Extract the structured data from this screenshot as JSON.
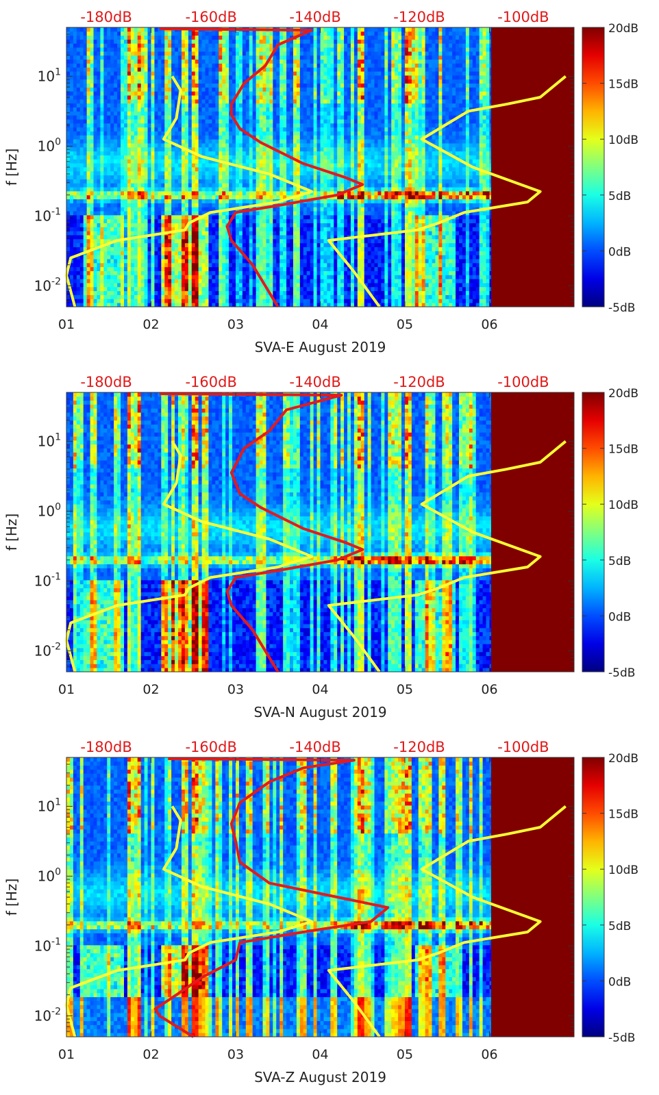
{
  "chart_data": [
    {
      "type": "heatmap",
      "title": "SVA-E August 2019",
      "xlabel": "SVA-E August 2019",
      "ylabel": "f [Hz]",
      "x_ticks": [
        "01",
        "02",
        "03",
        "04",
        "05",
        "06"
      ],
      "y_ticks": [
        "10^{-2}",
        "10^{-1}",
        "10^{0}",
        "10^{1}"
      ],
      "top_ticks": [
        "-180dB",
        "-160dB",
        "-140dB",
        "-120dB",
        "-100dB"
      ],
      "colorbar_ticks": [
        "20dB",
        "15dB",
        "10dB",
        "5dB",
        "0dB",
        "-5dB"
      ],
      "xlim": [
        1,
        7
      ],
      "ylim_log10": [
        -2.3,
        1.7
      ],
      "clim": [
        -5,
        20
      ],
      "series": [
        {
          "name": "red noise curve",
          "color": "#e41a1c",
          "points": [
            [
              2.1,
              1.68
            ],
            [
              3.9,
              1.66
            ],
            [
              3.5,
              1.45
            ],
            [
              3.35,
              1.15
            ],
            [
              3.1,
              0.9
            ],
            [
              2.95,
              0.6
            ],
            [
              2.95,
              0.45
            ],
            [
              3.05,
              0.25
            ],
            [
              3.3,
              0.05
            ],
            [
              3.8,
              -0.25
            ],
            [
              4.3,
              -0.45
            ],
            [
              4.5,
              -0.55
            ],
            [
              4.2,
              -0.7
            ],
            [
              3.5,
              -0.85
            ],
            [
              3.0,
              -0.95
            ],
            [
              2.9,
              -1.15
            ],
            [
              2.95,
              -1.35
            ],
            [
              3.2,
              -1.7
            ],
            [
              3.5,
              -2.3
            ]
          ]
        },
        {
          "name": "yellow model curve left",
          "color": "#ffff33",
          "points": [
            [
              2.25,
              1.0
            ],
            [
              2.35,
              0.8
            ],
            [
              2.3,
              0.4
            ],
            [
              2.15,
              0.1
            ],
            [
              2.6,
              -0.15
            ],
            [
              3.4,
              -0.4
            ],
            [
              3.9,
              -0.65
            ],
            [
              3.5,
              -0.8
            ],
            [
              2.7,
              -0.95
            ],
            [
              2.45,
              -1.1
            ],
            [
              2.4,
              -1.2
            ],
            [
              1.6,
              -1.35
            ],
            [
              1.05,
              -1.6
            ],
            [
              1.0,
              -1.85
            ],
            [
              1.1,
              -2.3
            ]
          ]
        },
        {
          "name": "yellow model curve right",
          "color": "#ffff33",
          "points": [
            [
              6.9,
              1.0
            ],
            [
              6.6,
              0.7
            ],
            [
              6.2,
              0.6
            ],
            [
              5.75,
              0.5
            ],
            [
              5.2,
              0.1
            ],
            [
              5.8,
              -0.3
            ],
            [
              6.6,
              -0.65
            ],
            [
              6.45,
              -0.8
            ],
            [
              5.7,
              -0.95
            ],
            [
              5.4,
              -1.1
            ],
            [
              5.15,
              -1.2
            ],
            [
              4.1,
              -1.35
            ],
            [
              4.4,
              -1.8
            ],
            [
              4.7,
              -2.3
            ]
          ]
        }
      ]
    },
    {
      "type": "heatmap",
      "title": "SVA-N August 2019",
      "xlabel": "SVA-N August 2019",
      "ylabel": "f [Hz]",
      "x_ticks": [
        "01",
        "02",
        "03",
        "04",
        "05",
        "06"
      ],
      "y_ticks": [
        "10^{-2}",
        "10^{-1}",
        "10^{0}",
        "10^{1}"
      ],
      "top_ticks": [
        "-180dB",
        "-160dB",
        "-140dB",
        "-120dB",
        "-100dB"
      ],
      "colorbar_ticks": [
        "20dB",
        "15dB",
        "10dB",
        "5dB",
        "0dB",
        "-5dB"
      ],
      "xlim": [
        1,
        7
      ],
      "ylim_log10": [
        -2.3,
        1.7
      ],
      "clim": [
        -5,
        20
      ],
      "series": [
        {
          "name": "red noise curve",
          "color": "#e41a1c",
          "points": [
            [
              2.1,
              1.68
            ],
            [
              4.25,
              1.66
            ],
            [
              3.6,
              1.45
            ],
            [
              3.4,
              1.15
            ],
            [
              3.1,
              0.9
            ],
            [
              2.95,
              0.55
            ],
            [
              3.05,
              0.25
            ],
            [
              3.3,
              0.05
            ],
            [
              3.8,
              -0.25
            ],
            [
              4.3,
              -0.45
            ],
            [
              4.5,
              -0.55
            ],
            [
              4.2,
              -0.7
            ],
            [
              3.5,
              -0.85
            ],
            [
              3.0,
              -0.95
            ],
            [
              2.9,
              -1.15
            ],
            [
              2.95,
              -1.35
            ],
            [
              3.2,
              -1.7
            ],
            [
              3.5,
              -2.3
            ]
          ]
        },
        {
          "name": "yellow model curve left",
          "color": "#ffff33",
          "points": [
            [
              2.25,
              1.0
            ],
            [
              2.35,
              0.8
            ],
            [
              2.3,
              0.4
            ],
            [
              2.15,
              0.1
            ],
            [
              2.6,
              -0.15
            ],
            [
              3.4,
              -0.4
            ],
            [
              3.9,
              -0.65
            ],
            [
              3.5,
              -0.8
            ],
            [
              2.7,
              -0.95
            ],
            [
              2.45,
              -1.1
            ],
            [
              2.4,
              -1.2
            ],
            [
              1.6,
              -1.35
            ],
            [
              1.05,
              -1.6
            ],
            [
              1.0,
              -1.85
            ],
            [
              1.1,
              -2.3
            ]
          ]
        },
        {
          "name": "yellow model curve right",
          "color": "#ffff33",
          "points": [
            [
              6.9,
              1.0
            ],
            [
              6.6,
              0.7
            ],
            [
              6.2,
              0.6
            ],
            [
              5.75,
              0.5
            ],
            [
              5.2,
              0.1
            ],
            [
              5.8,
              -0.3
            ],
            [
              6.6,
              -0.65
            ],
            [
              6.45,
              -0.8
            ],
            [
              5.7,
              -0.95
            ],
            [
              5.4,
              -1.1
            ],
            [
              5.15,
              -1.2
            ],
            [
              4.1,
              -1.35
            ],
            [
              4.4,
              -1.8
            ],
            [
              4.7,
              -2.3
            ]
          ]
        }
      ]
    },
    {
      "type": "heatmap",
      "title": "SVA-Z August 2019",
      "xlabel": "SVA-Z August 2019",
      "ylabel": "f [Hz]",
      "x_ticks": [
        "01",
        "02",
        "03",
        "04",
        "05",
        "06"
      ],
      "y_ticks": [
        "10^{-2}",
        "10^{-1}",
        "10^{0}",
        "10^{1}"
      ],
      "top_ticks": [
        "-180dB",
        "-160dB",
        "-140dB",
        "-120dB",
        "-100dB"
      ],
      "colorbar_ticks": [
        "20dB",
        "15dB",
        "10dB",
        "5dB",
        "0dB",
        "-5dB"
      ],
      "xlim": [
        1,
        7
      ],
      "ylim_log10": [
        -2.3,
        1.7
      ],
      "clim": [
        -5,
        20
      ],
      "series": [
        {
          "name": "red noise curve",
          "color": "#e41a1c",
          "points": [
            [
              2.2,
              1.68
            ],
            [
              4.4,
              1.66
            ],
            [
              3.8,
              1.55
            ],
            [
              3.4,
              1.35
            ],
            [
              3.05,
              1.05
            ],
            [
              2.95,
              0.75
            ],
            [
              3.0,
              0.5
            ],
            [
              3.05,
              0.2
            ],
            [
              3.4,
              -0.1
            ],
            [
              4.2,
              -0.3
            ],
            [
              4.8,
              -0.45
            ],
            [
              4.6,
              -0.65
            ],
            [
              3.8,
              -0.8
            ],
            [
              3.05,
              -0.95
            ],
            [
              3.0,
              -1.2
            ],
            [
              2.6,
              -1.45
            ],
            [
              2.3,
              -1.7
            ],
            [
              2.05,
              -1.9
            ],
            [
              2.1,
              -2.0
            ],
            [
              2.5,
              -2.3
            ]
          ]
        },
        {
          "name": "yellow model curve left",
          "color": "#ffff33",
          "points": [
            [
              2.25,
              1.0
            ],
            [
              2.35,
              0.8
            ],
            [
              2.3,
              0.4
            ],
            [
              2.15,
              0.1
            ],
            [
              2.6,
              -0.15
            ],
            [
              3.4,
              -0.4
            ],
            [
              3.9,
              -0.65
            ],
            [
              3.5,
              -0.8
            ],
            [
              2.7,
              -0.95
            ],
            [
              2.45,
              -1.1
            ],
            [
              2.4,
              -1.2
            ],
            [
              1.6,
              -1.35
            ],
            [
              1.05,
              -1.6
            ],
            [
              1.0,
              -1.85
            ],
            [
              1.1,
              -2.3
            ]
          ]
        },
        {
          "name": "yellow model curve right",
          "color": "#ffff33",
          "points": [
            [
              6.9,
              1.0
            ],
            [
              6.6,
              0.7
            ],
            [
              6.2,
              0.6
            ],
            [
              5.75,
              0.5
            ],
            [
              5.2,
              0.1
            ],
            [
              5.8,
              -0.3
            ],
            [
              6.6,
              -0.65
            ],
            [
              6.45,
              -0.8
            ],
            [
              5.7,
              -0.95
            ],
            [
              5.4,
              -1.1
            ],
            [
              5.15,
              -1.2
            ],
            [
              4.1,
              -1.35
            ],
            [
              4.4,
              -1.8
            ],
            [
              4.7,
              -2.3
            ]
          ]
        }
      ]
    }
  ]
}
